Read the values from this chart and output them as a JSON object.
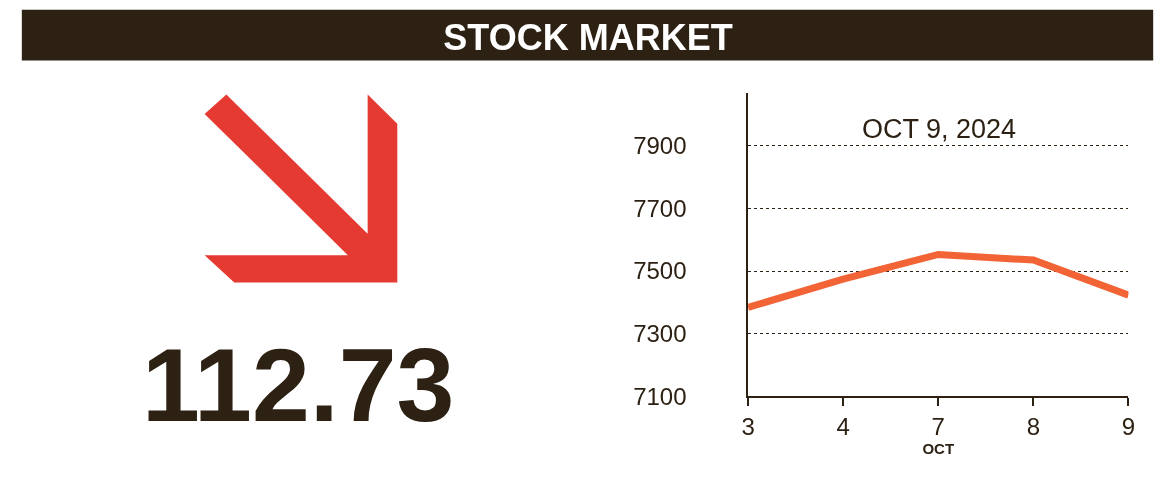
{
  "chart_data": {
    "type": "line",
    "title": "STOCK MARKET",
    "subtitle": "OCT 9, 2024",
    "xlabel": "OCT",
    "categories": [
      "3",
      "4",
      "7",
      "8",
      "9"
    ],
    "series": [
      {
        "color": "#f26336",
        "values": [
          7384,
          7474,
          7553,
          7535,
          7423
        ]
      }
    ],
    "ylim": [
      7100,
      8070
    ],
    "yticks": [
      7100,
      7300,
      7500,
      7700,
      7900
    ],
    "grid": "y",
    "marker": "none",
    "line_style": "solid",
    "annotations": [
      "112.73"
    ]
  }
}
